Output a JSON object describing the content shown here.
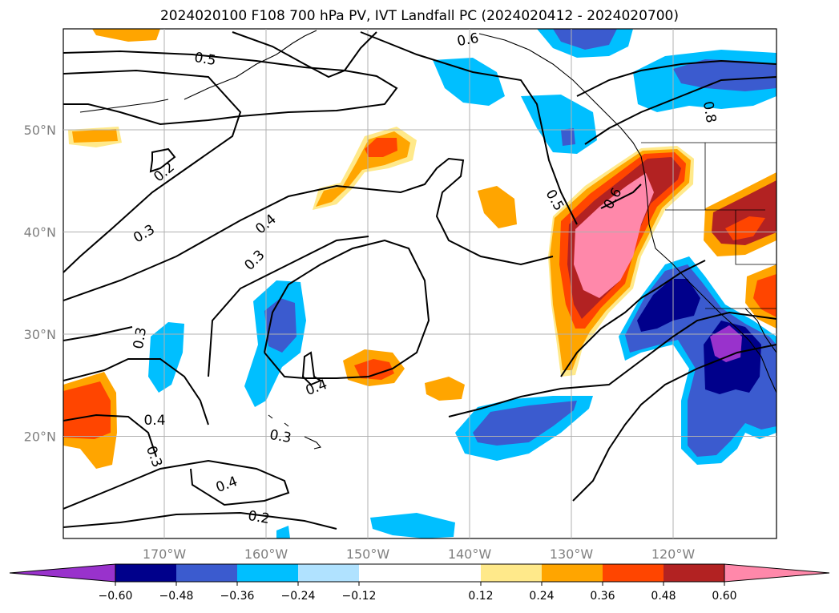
{
  "title": "2024020100 F108 700 hPa PV, IVT Landfall PC (2024020412 - 2024020700)",
  "map": {
    "lon_ticks": [
      "170°W",
      "160°W",
      "150°W",
      "140°W",
      "130°W",
      "120°W"
    ],
    "lat_ticks": [
      "50°N",
      "40°N",
      "30°N",
      "20°N"
    ],
    "lon_tick_values": [
      -170,
      -160,
      -150,
      -140,
      -130,
      -120
    ],
    "lat_tick_values": [
      50,
      40,
      30,
      20
    ],
    "gridlines": true
  },
  "contours": {
    "labels": [
      "0.6",
      "0.5",
      "0.2",
      "0.8",
      "0.3",
      "0.4",
      "0.3",
      "0.5",
      "0.6",
      "0.3",
      "0.4",
      "0.4",
      "0.3",
      "0.3",
      "0.4",
      "0.2"
    ]
  },
  "colorbar": {
    "tick_labels": [
      "−0.60",
      "−0.48",
      "−0.36",
      "−0.24",
      "−0.12",
      "0.12",
      "0.24",
      "0.36",
      "0.48",
      "0.60"
    ],
    "tick_values": [
      -0.6,
      -0.48,
      -0.36,
      -0.24,
      -0.12,
      0.12,
      0.24,
      0.36,
      0.48,
      0.6
    ],
    "colors": [
      "#9932cc",
      "#00008b",
      "#3b5bcf",
      "#00bfff",
      "#b0e2ff",
      "#ffffff",
      "#ffe98a",
      "#ffa500",
      "#ff4500",
      "#b22222",
      "#ff88aa"
    ],
    "extend": "both"
  }
}
